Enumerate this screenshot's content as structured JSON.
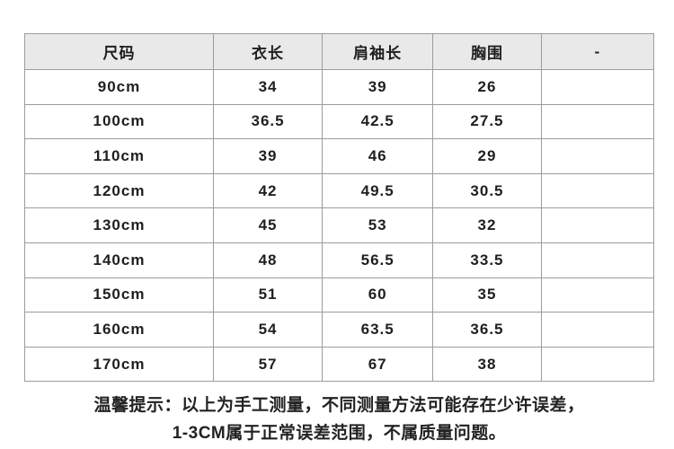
{
  "size_chart": {
    "headers": [
      "尺码",
      "衣长",
      "肩袖长",
      "胸围",
      "-"
    ],
    "rows": [
      [
        "90cm",
        "34",
        "39",
        "26",
        ""
      ],
      [
        "100cm",
        "36.5",
        "42.5",
        "27.5",
        ""
      ],
      [
        "110cm",
        "39",
        "46",
        "29",
        ""
      ],
      [
        "120cm",
        "42",
        "49.5",
        "30.5",
        ""
      ],
      [
        "130cm",
        "45",
        "53",
        "32",
        ""
      ],
      [
        "140cm",
        "48",
        "56.5",
        "33.5",
        ""
      ],
      [
        "150cm",
        "51",
        "60",
        "35",
        ""
      ],
      [
        "160cm",
        "54",
        "63.5",
        "36.5",
        ""
      ],
      [
        "170cm",
        "57",
        "67",
        "38",
        ""
      ]
    ]
  },
  "notice": {
    "line1": "温馨提示：以上为手工测量，不同测量方法可能存在少许误差，",
    "line2": "1-3CM属于正常误差范围，不属质量问题。"
  },
  "colors": {
    "header_background": "#e9e9e9",
    "border": "#9c9c9c",
    "text": "#1f1f1f"
  }
}
